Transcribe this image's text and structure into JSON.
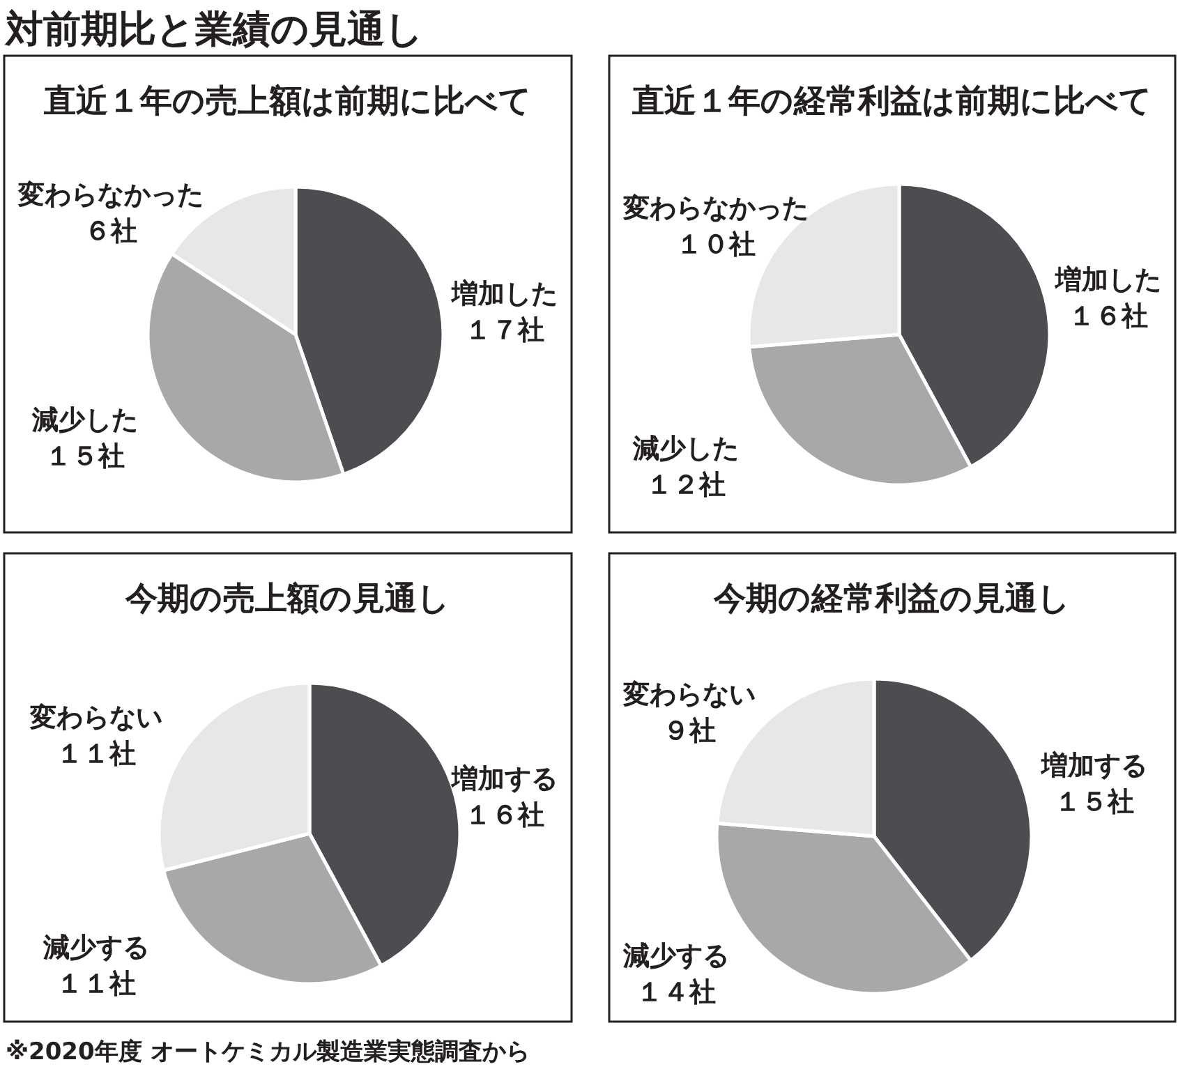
{
  "chart_data": [
    {
      "type": "pie",
      "title": "対前期比と業績の見通し",
      "subtitle": "直近１年の売上額は前期に比べて",
      "annotations": [
        "※2020年度 オートケミカル製造業実態調査から"
      ],
      "categories": [
        "増加した",
        "減少した",
        "変わらなかった"
      ],
      "values": [
        17,
        15,
        6
      ],
      "value_labels": [
        "１７社",
        "１５社",
        "６社"
      ],
      "colors": [
        "#4d4c50",
        "#a8a8ab",
        "#e7e7e9"
      ]
    },
    {
      "type": "pie",
      "title": "直近１年の経常利益は前期に比べて",
      "categories": [
        "増加した",
        "減少した",
        "変わらなかった"
      ],
      "values": [
        16,
        12,
        10
      ],
      "value_labels": [
        "１６社",
        "１２社",
        "１０社"
      ],
      "colors": [
        "#4d4c50",
        "#a8a8ab",
        "#e7e7e9"
      ]
    },
    {
      "type": "pie",
      "title": "今期の売上額の見通し",
      "categories": [
        "増加する",
        "減少する",
        "変わらない"
      ],
      "values": [
        16,
        11,
        11
      ],
      "value_labels": [
        "１６社",
        "１１社",
        "１１社"
      ],
      "colors": [
        "#4d4c50",
        "#a8a8ab",
        "#e7e7e9"
      ]
    },
    {
      "type": "pie",
      "title": "今期の経常利益の見通し",
      "categories": [
        "増加する",
        "減少する",
        "変わらない"
      ],
      "values": [
        15,
        14,
        9
      ],
      "value_labels": [
        "１５社",
        "１４社",
        "９社"
      ],
      "colors": [
        "#4d4c50",
        "#a8a8ab",
        "#e7e7e9"
      ]
    }
  ]
}
